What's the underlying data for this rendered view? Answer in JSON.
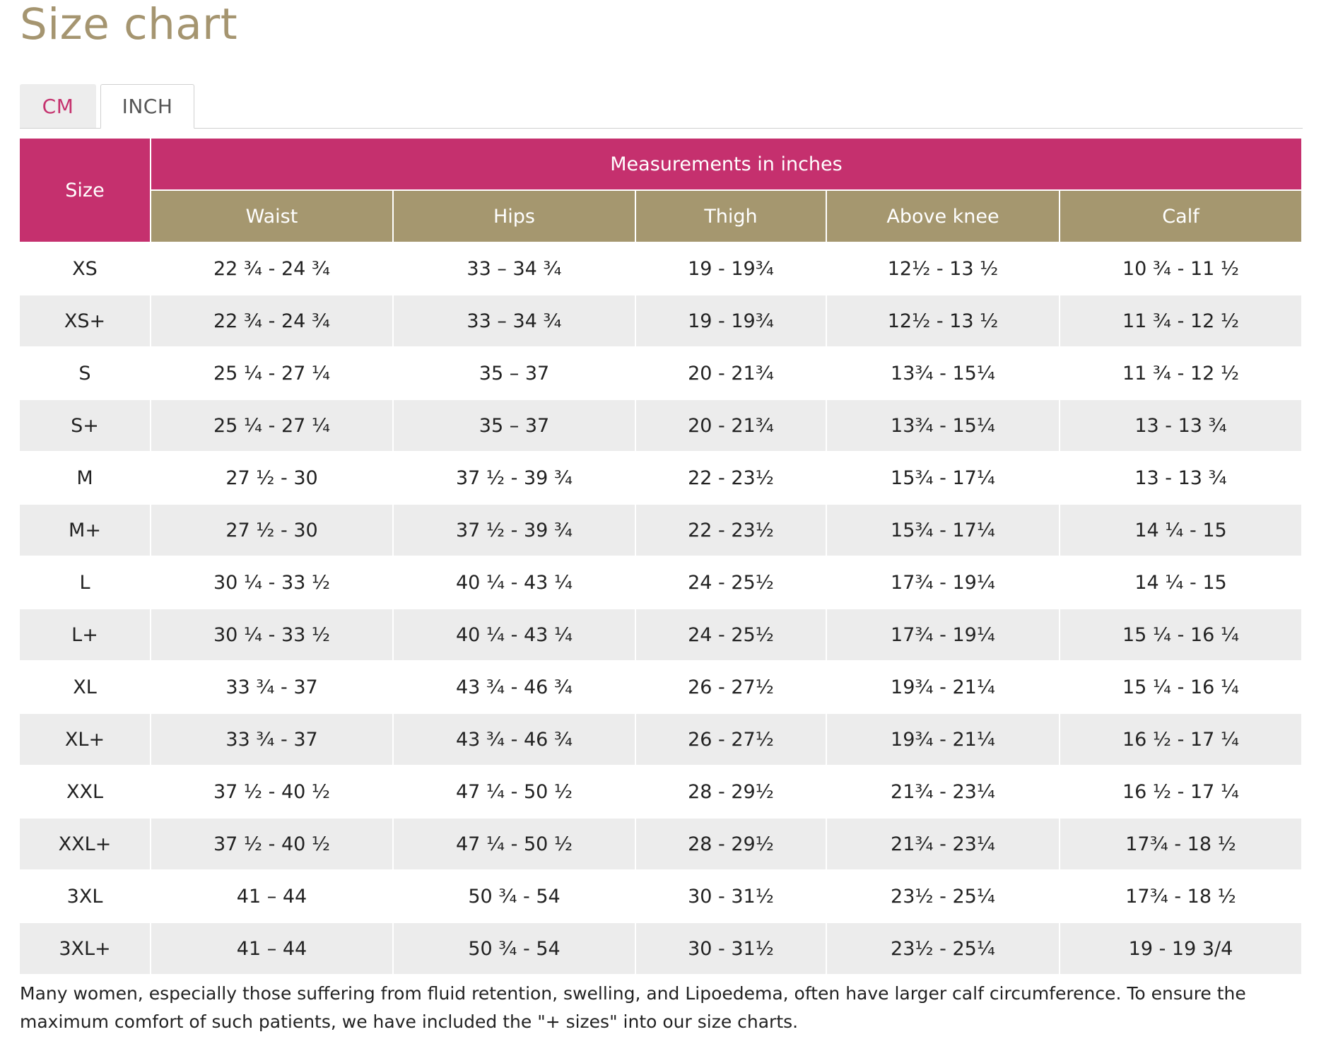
{
  "page": {
    "title": "Size chart"
  },
  "tabs": [
    {
      "label": "CM",
      "active": false
    },
    {
      "label": "INCH",
      "active": true
    }
  ],
  "table": {
    "size_header": "Size",
    "group_header": "Measurements in inches",
    "columns": [
      "Waist",
      "Hips",
      "Thigh",
      "Above knee",
      "Calf"
    ],
    "rows": [
      [
        "XS",
        "22 ¾ - 24 ¾",
        "33 – 34 ¾",
        "19 - 19¾",
        "12½ - 13 ½",
        "10 ¾ - 11 ½"
      ],
      [
        "XS+",
        "22 ¾ - 24 ¾",
        "33 – 34 ¾",
        "19 - 19¾",
        "12½ - 13 ½",
        "11 ¾ - 12 ½"
      ],
      [
        "S",
        "25 ¼ - 27 ¼",
        "35 – 37",
        "20 - 21¾",
        "13¾ - 15¼",
        "11 ¾ - 12 ½"
      ],
      [
        "S+",
        "25 ¼ - 27 ¼",
        "35 – 37",
        "20 - 21¾",
        "13¾ - 15¼",
        "13 - 13 ¾"
      ],
      [
        "M",
        "27 ½ - 30",
        "37 ½ - 39 ¾",
        "22 - 23½",
        "15¾ - 17¼",
        "13 - 13 ¾"
      ],
      [
        "M+",
        "27 ½ - 30",
        "37 ½ - 39 ¾",
        "22 - 23½",
        "15¾ - 17¼",
        "14 ¼ - 15"
      ],
      [
        "L",
        "30 ¼ - 33 ½",
        "40 ¼ - 43 ¼",
        "24 - 25½",
        "17¾ - 19¼",
        "14 ¼ - 15"
      ],
      [
        "L+",
        "30 ¼ - 33 ½",
        "40 ¼ - 43 ¼",
        "24 - 25½",
        "17¾ - 19¼",
        "15 ¼ - 16 ¼"
      ],
      [
        "XL",
        "33 ¾ - 37",
        "43 ¾ - 46 ¾",
        "26 - 27½",
        "19¾ - 21¼",
        "15 ¼ - 16 ¼"
      ],
      [
        "XL+",
        "33 ¾ - 37",
        "43 ¾ - 46 ¾",
        "26 - 27½",
        "19¾ - 21¼",
        "16 ½ - 17 ¼"
      ],
      [
        "XXL",
        "37 ½ - 40 ½",
        "47 ¼ - 50 ½",
        "28 - 29½",
        "21¾ - 23¼",
        "16 ½ - 17 ¼"
      ],
      [
        "XXL+",
        "37 ½ - 40 ½",
        "47 ¼ - 50 ½",
        "28 - 29½",
        "21¾ - 23¼",
        "17¾ - 18 ½"
      ],
      [
        "3XL",
        "41 – 44",
        "50 ¾ - 54",
        "30 - 31½",
        "23½ - 25¼",
        "17¾ - 18 ½"
      ],
      [
        "3XL+",
        "41 – 44",
        "50 ¾ - 54",
        "30 - 31½",
        "23½ - 25¼",
        "19 - 19 3/4"
      ]
    ]
  },
  "note": "Many women, especially those suffering from fluid retention, swelling, and Lipoedema, often have larger calf circumference. To ensure the maximum comfort of such patients, we have included the \"+ sizes\" into our size charts.",
  "colors": {
    "title": "#a59570",
    "accent_pink": "#c5306e",
    "column_header_gold": "#a5976f",
    "row_stripe": "#ececec"
  }
}
